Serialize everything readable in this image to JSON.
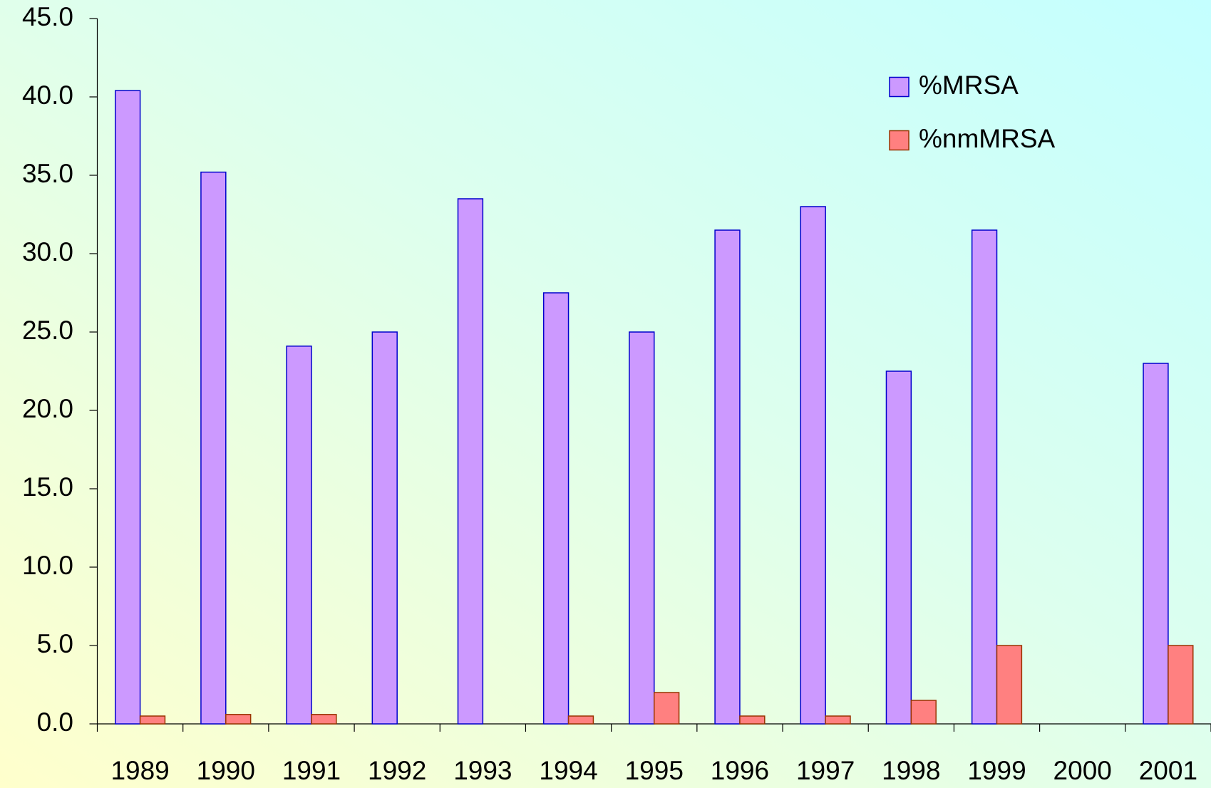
{
  "chart_data": {
    "type": "bar",
    "categories": [
      "1989",
      "1990",
      "1991",
      "1992",
      "1993",
      "1994",
      "1995",
      "1996",
      "1997",
      "1998",
      "1999",
      "2000",
      "2001"
    ],
    "series": [
      {
        "name": "%MRSA",
        "color": "#cc99ff",
        "stroke": "#0000cc",
        "values": [
          40.4,
          35.2,
          24.1,
          25.0,
          33.5,
          27.5,
          25.0,
          31.5,
          33.0,
          22.5,
          31.5,
          null,
          23.0
        ]
      },
      {
        "name": "%nmMRSA",
        "color": "#ff8080",
        "stroke": "#993300",
        "values": [
          0.5,
          0.6,
          0.6,
          null,
          null,
          0.5,
          2.0,
          0.5,
          0.5,
          1.5,
          5.0,
          null,
          5.0
        ]
      }
    ],
    "ylim": [
      0,
      45
    ],
    "yticks": [
      {
        "value": 0,
        "label": "0.0"
      },
      {
        "value": 5,
        "label": "5.0"
      },
      {
        "value": 10,
        "label": "10.0"
      },
      {
        "value": 15,
        "label": "15.0"
      },
      {
        "value": 20,
        "label": "20.0"
      },
      {
        "value": 25,
        "label": "25.0"
      },
      {
        "value": 30,
        "label": "30.0"
      },
      {
        "value": 35,
        "label": "35.0"
      },
      {
        "value": 40,
        "label": "40.0"
      },
      {
        "value": 45,
        "label": "45.0"
      }
    ],
    "legend": "top-right",
    "grid": false
  }
}
